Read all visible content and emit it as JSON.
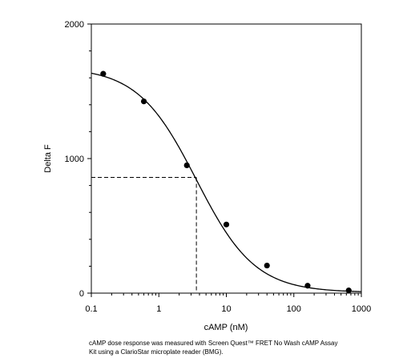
{
  "chart_data": {
    "type": "scatter",
    "xlabel": "cAMP (nM)",
    "ylabel": "Delta F",
    "xscale": "log",
    "xlim": [
      0.1,
      1000
    ],
    "ylim": [
      0,
      2000
    ],
    "x_ticks": [
      0.1,
      1,
      10,
      100,
      1000
    ],
    "x_tick_labels": [
      "0.1",
      "1",
      "10",
      "100",
      "1000"
    ],
    "y_ticks": [
      0,
      1000,
      2000
    ],
    "y_tick_labels": [
      "0",
      "1000",
      "2000"
    ],
    "grid": false,
    "legend": "none",
    "series": [
      {
        "x": [
          0.15,
          0.6,
          2.6,
          10,
          40,
          160,
          650
        ],
        "y": [
          1630,
          1425,
          950,
          510,
          205,
          55,
          20
        ],
        "marker": "filled-circle",
        "color": "#000000"
      }
    ],
    "fit_curve": {
      "model": "4-parameter logistic",
      "top": 1680,
      "bottom": 5,
      "ec50": 3.6,
      "hill": 1.0
    },
    "ec50_marker": {
      "x": 3.6,
      "y": 860,
      "style": "dashed"
    }
  },
  "caption": {
    "line1": "cAMP dose response was measured with Screen Quest™ FRET No Wash cAMP Assay",
    "line2": "Kit using a ClarioStar microplate reader (BMG)."
  }
}
